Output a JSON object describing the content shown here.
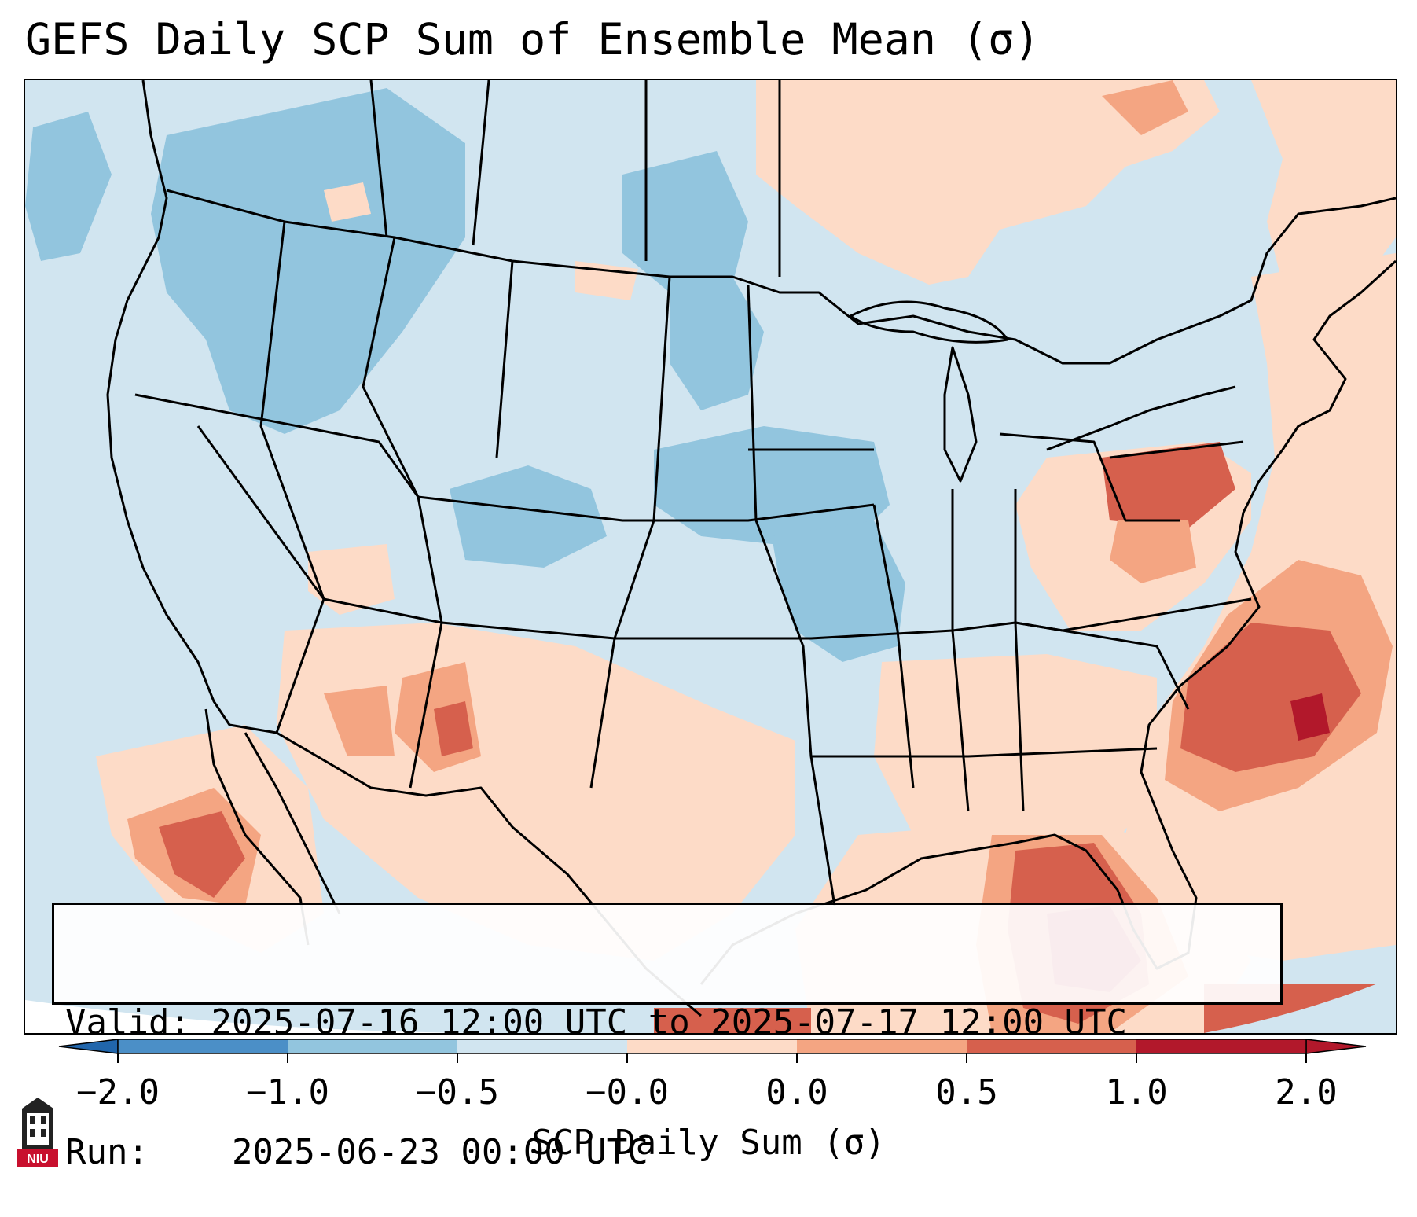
{
  "title": "GEFS Daily SCP Sum of Ensemble Mean (σ)",
  "info": {
    "valid_label": "Valid:",
    "valid_value": "2025-07-16 12:00 UTC to 2025-07-17 12:00 UTC",
    "run_label": "Run:",
    "run_value": "2025-06-23 00:00 UTC"
  },
  "colorbar": {
    "label": "SCP Daily Sum (σ)",
    "ticks": [
      "−2.0",
      "−1.0",
      "−0.5",
      "−0.0",
      "0.0",
      "0.5",
      "1.0",
      "2.0"
    ],
    "colors": [
      "#4b8fc7",
      "#92c5de",
      "#d1e5f0",
      "#f7f7f7",
      "#fddbc7",
      "#f4a582",
      "#d6604d",
      "#b2182b"
    ],
    "extend_low_color": "#2166ac",
    "extend_high_color": "#b2182b"
  },
  "logo": {
    "text": "NIU",
    "color": "#c8102e"
  },
  "map": {
    "ocean_color": "#d1e5f0",
    "land_base_color": "#d1e5f0",
    "anomaly_levels": {
      "light_blue": "#92c5de",
      "light_red": "#fddbc7",
      "mid_red": "#f4a582",
      "red": "#d6604d",
      "dark_red": "#b2182b"
    }
  }
}
